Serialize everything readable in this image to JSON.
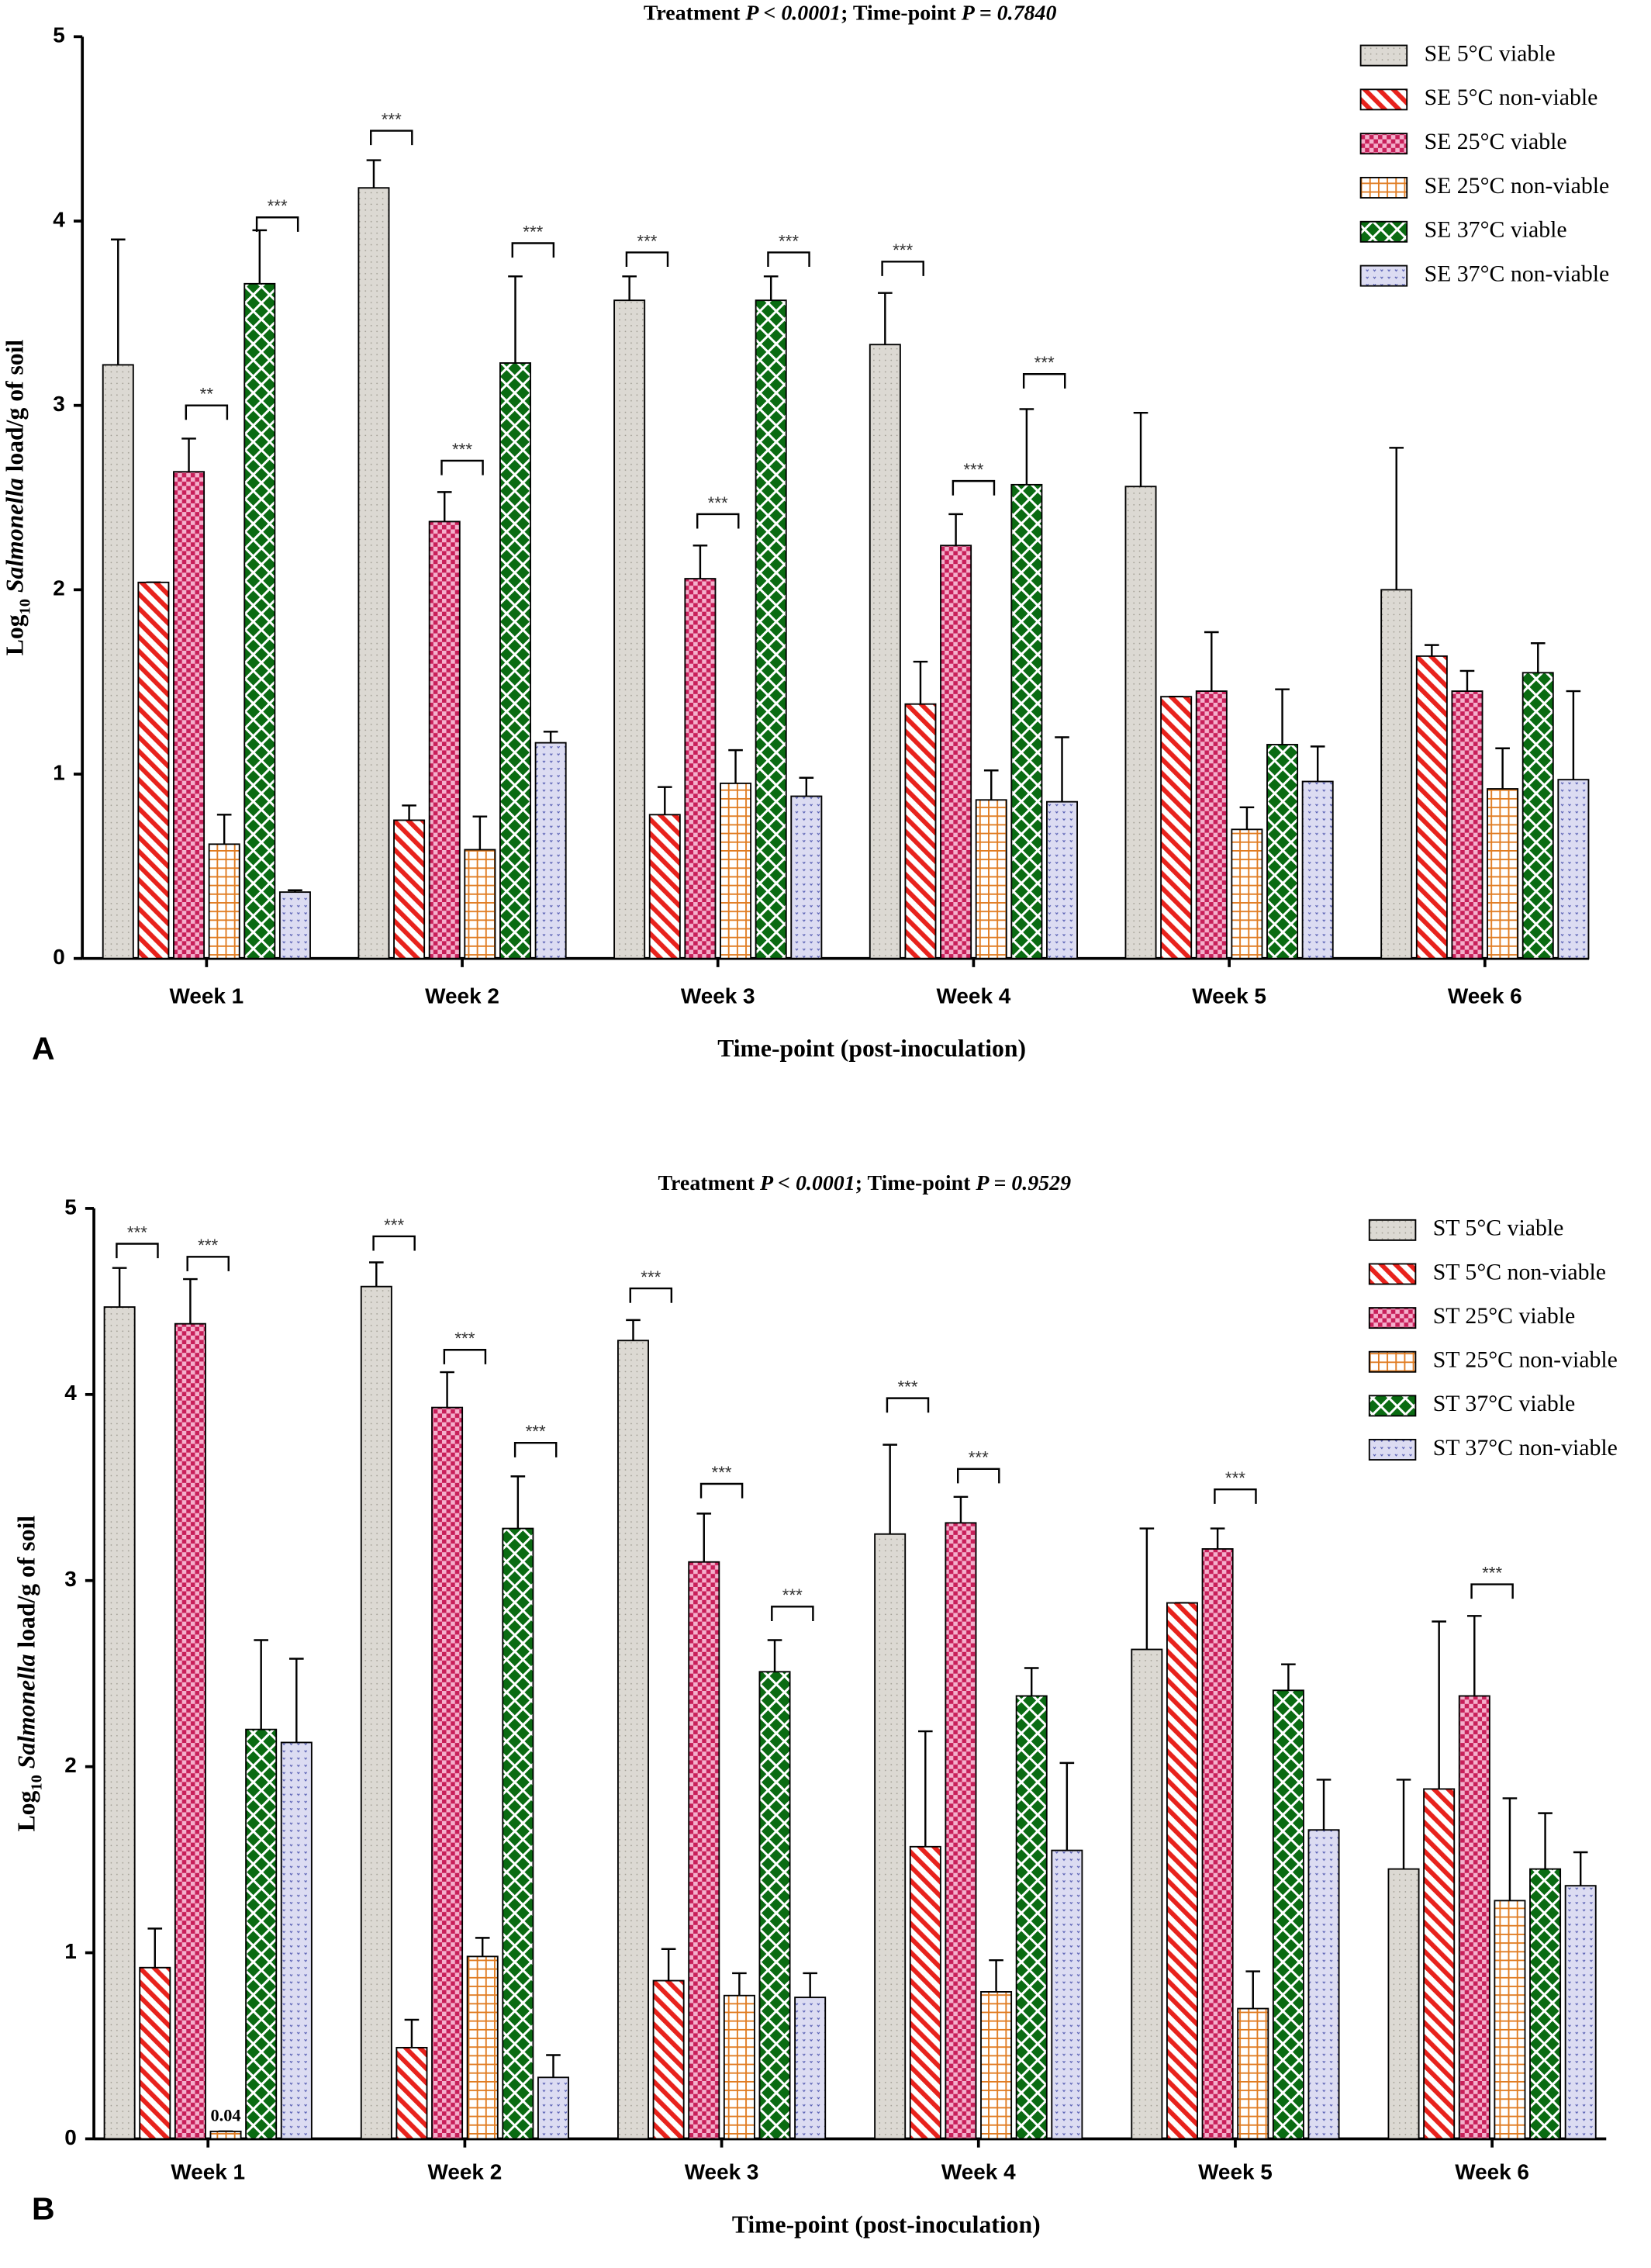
{
  "chart_data": [
    {
      "type": "bar",
      "panel_label": "A",
      "title": [
        "Treatment ",
        "P < 0.0001",
        "; Time-point ",
        "P = 0.7840"
      ],
      "ylabel": [
        "Log",
        "10",
        " ",
        "Salmonella",
        " load/g of soil"
      ],
      "xlabel": "Time-point (post-inoculation)",
      "categories": [
        "Week 1",
        "Week 2",
        "Week 3",
        "Week 4",
        "Week 5",
        "Week 6"
      ],
      "ylim": [
        0,
        5
      ],
      "yticks": [
        0,
        1,
        2,
        3,
        4,
        5
      ],
      "legend": "upper right",
      "series": [
        {
          "name": "SE 5°C viable",
          "color": "#dcd9d3",
          "pattern": "dots",
          "values": [
            3.22,
            4.18,
            3.57,
            3.33,
            2.56,
            2.0
          ],
          "errors": [
            0.68,
            0.15,
            0.13,
            0.28,
            0.4,
            0.77
          ]
        },
        {
          "name": "SE 5°C non-viable",
          "color": "#e8221c",
          "pattern": "stripes",
          "values": [
            2.04,
            0.75,
            0.78,
            1.38,
            1.42,
            1.64
          ],
          "errors": [
            0,
            0.08,
            0.15,
            0.23,
            0,
            0.06
          ]
        },
        {
          "name": "SE 25°C viable",
          "color": "#c8205a",
          "pattern": "checker",
          "values": [
            2.64,
            2.37,
            2.06,
            2.24,
            1.45,
            1.45
          ],
          "errors": [
            0.18,
            0.16,
            0.18,
            0.17,
            0.32,
            0.11
          ]
        },
        {
          "name": "SE 25°C non-viable",
          "color": "#e07b20",
          "pattern": "grid",
          "values": [
            0.62,
            0.59,
            0.95,
            0.86,
            0.7,
            0.92
          ],
          "errors": [
            0.16,
            0.18,
            0.18,
            0.16,
            0.12,
            0.22
          ]
        },
        {
          "name": "SE 37°C viable",
          "color": "#0a6b12",
          "pattern": "diamond",
          "values": [
            3.66,
            3.23,
            3.57,
            2.57,
            1.16,
            1.55
          ],
          "errors": [
            0.29,
            0.47,
            0.13,
            0.41,
            0.3,
            0.16
          ]
        },
        {
          "name": "SE 37°C non-viable",
          "color": "#5058b0",
          "pattern": "speckle",
          "values": [
            0.36,
            1.17,
            0.88,
            0.85,
            0.96,
            0.97
          ],
          "errors": [
            0.01,
            0.06,
            0.1,
            0.35,
            0.19,
            0.48
          ]
        }
      ],
      "annotations": [
        {
          "text": "**",
          "category": 0,
          "series": 2,
          "y": 3.0
        },
        {
          "text": "***",
          "category": 0,
          "series": 4,
          "y": 4.02
        },
        {
          "text": "***",
          "category": 1,
          "series": 0,
          "y": 4.49
        },
        {
          "text": "***",
          "category": 1,
          "series": 2,
          "y": 2.7
        },
        {
          "text": "***",
          "category": 1,
          "series": 4,
          "y": 3.88
        },
        {
          "text": "***",
          "category": 2,
          "series": 0,
          "y": 3.83
        },
        {
          "text": "***",
          "category": 2,
          "series": 2,
          "y": 2.41
        },
        {
          "text": "***",
          "category": 2,
          "series": 4,
          "y": 3.83
        },
        {
          "text": "***",
          "category": 3,
          "series": 0,
          "y": 3.78
        },
        {
          "text": "***",
          "category": 3,
          "series": 2,
          "y": 2.59
        },
        {
          "text": "***",
          "category": 3,
          "series": 4,
          "y": 3.17
        }
      ]
    },
    {
      "type": "bar",
      "panel_label": "B",
      "title": [
        "Treatment ",
        "P < 0.0001",
        "; Time-point ",
        "P = 0.9529"
      ],
      "ylabel": [
        "Log",
        "10",
        " ",
        "Salmonella",
        " load/g of soil"
      ],
      "xlabel": "Time-point (post-inoculation)",
      "categories": [
        "Week 1",
        "Week 2",
        "Week 3",
        "Week 4",
        "Week 5",
        "Week 6"
      ],
      "ylim": [
        0,
        5
      ],
      "yticks": [
        0,
        1,
        2,
        3,
        4,
        5
      ],
      "legend": "upper right",
      "series": [
        {
          "name": "ST 5°C viable",
          "color": "#dcd9d3",
          "pattern": "dots",
          "values": [
            4.47,
            4.58,
            4.29,
            3.25,
            2.63,
            1.45
          ],
          "errors": [
            0.21,
            0.13,
            0.11,
            0.48,
            0.65,
            0.48
          ]
        },
        {
          "name": "ST 5°C non-viable",
          "color": "#e8221c",
          "pattern": "stripes",
          "values": [
            0.92,
            0.49,
            0.85,
            1.57,
            2.88,
            1.88
          ],
          "errors": [
            0.21,
            0.15,
            0.17,
            0.62,
            0,
            0.9
          ]
        },
        {
          "name": "ST 25°C viable",
          "color": "#c8205a",
          "pattern": "checker",
          "values": [
            4.38,
            3.93,
            3.1,
            3.31,
            3.17,
            2.38
          ],
          "errors": [
            0.24,
            0.19,
            0.26,
            0.14,
            0.11,
            0.43
          ]
        },
        {
          "name": "ST 25°C non-viable",
          "color": "#e07b20",
          "pattern": "grid",
          "values": [
            0.04,
            0.98,
            0.77,
            0.79,
            0.7,
            1.28
          ],
          "errors": [
            0,
            0.1,
            0.12,
            0.17,
            0.2,
            0.55
          ],
          "value_labels": [
            "0.04",
            null,
            null,
            null,
            null,
            null
          ]
        },
        {
          "name": "ST 37°C viable",
          "color": "#0a6b12",
          "pattern": "diamond",
          "values": [
            2.2,
            3.28,
            2.51,
            2.38,
            2.41,
            1.45
          ],
          "errors": [
            0.48,
            0.28,
            0.17,
            0.15,
            0.14,
            0.3
          ]
        },
        {
          "name": "ST 37°C non-viable",
          "color": "#5058b0",
          "pattern": "speckle",
          "values": [
            2.13,
            0.33,
            0.76,
            1.55,
            1.66,
            1.36
          ],
          "errors": [
            0.45,
            0.12,
            0.13,
            0.47,
            0.27,
            0.18
          ]
        }
      ],
      "annotations": [
        {
          "text": "***",
          "category": 0,
          "series": 0,
          "y": 4.81
        },
        {
          "text": "***",
          "category": 0,
          "series": 2,
          "y": 4.74
        },
        {
          "text": "***",
          "category": 1,
          "series": 0,
          "y": 4.85
        },
        {
          "text": "***",
          "category": 1,
          "series": 2,
          "y": 4.24
        },
        {
          "text": "***",
          "category": 1,
          "series": 4,
          "y": 3.74
        },
        {
          "text": "***",
          "category": 2,
          "series": 0,
          "y": 4.57
        },
        {
          "text": "***",
          "category": 2,
          "series": 2,
          "y": 3.52
        },
        {
          "text": "***",
          "category": 2,
          "series": 4,
          "y": 2.86
        },
        {
          "text": "***",
          "category": 3,
          "series": 0,
          "y": 3.98
        },
        {
          "text": "***",
          "category": 3,
          "series": 2,
          "y": 3.6
        },
        {
          "text": "***",
          "category": 4,
          "series": 2,
          "y": 3.49
        },
        {
          "text": "***",
          "category": 5,
          "series": 2,
          "y": 2.98
        }
      ]
    }
  ]
}
